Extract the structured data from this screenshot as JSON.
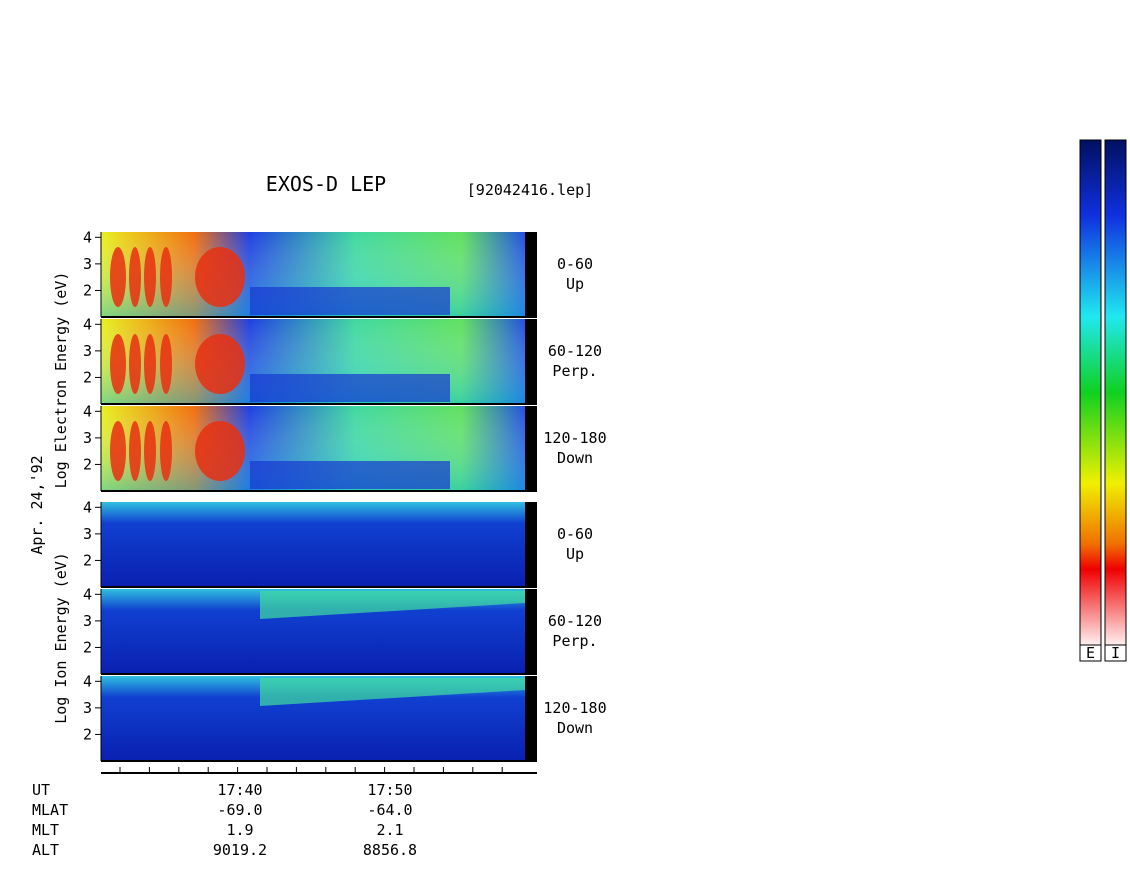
{
  "title": "EXOS-D LEP",
  "file": "[92042416.lep]",
  "date": "Apr. 24,'92",
  "electron_axis_label": "Log Electron Energy (eV)",
  "ion_axis_label": "Log Ion Energy (eV)",
  "panels": [
    {
      "species": "electron",
      "ylim": [
        1,
        4.2
      ],
      "yticks": [
        2,
        3,
        4
      ],
      "angle": "0-60",
      "direction": "Up"
    },
    {
      "species": "electron",
      "ylim": [
        1,
        4.2
      ],
      "yticks": [
        2,
        3,
        4
      ],
      "angle": "60-120",
      "direction": "Perp."
    },
    {
      "species": "electron",
      "ylim": [
        1,
        4.2
      ],
      "yticks": [
        2,
        3,
        4
      ],
      "angle": "120-180",
      "direction": "Down"
    },
    {
      "species": "ion",
      "ylim": [
        1,
        4.2
      ],
      "yticks": [
        2,
        3,
        4
      ],
      "angle": "0-60",
      "direction": "Up"
    },
    {
      "species": "ion",
      "ylim": [
        1,
        4.2
      ],
      "yticks": [
        2,
        3,
        4
      ],
      "angle": "60-120",
      "direction": "Perp."
    },
    {
      "species": "ion",
      "ylim": [
        1,
        4.2
      ],
      "yticks": [
        2,
        3,
        4
      ],
      "angle": "120-180",
      "direction": "Down"
    }
  ],
  "x_axis": [
    {
      "label": "UT",
      "values": [
        "17:40",
        "17:50"
      ]
    },
    {
      "label": "MLAT",
      "values": [
        "-69.0",
        "-64.0"
      ]
    },
    {
      "label": "MLT",
      "values": [
        "1.9",
        "2.1"
      ]
    },
    {
      "label": "ALT",
      "values": [
        "9019.2",
        "8856.8"
      ]
    }
  ],
  "colorbars": [
    "E",
    "I"
  ]
}
